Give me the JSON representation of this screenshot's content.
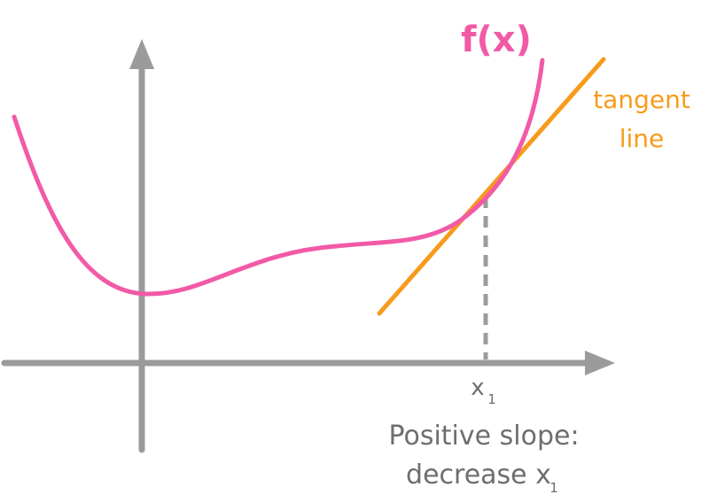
{
  "colors": {
    "curve": "#f25aa6",
    "tangent": "#f79b1c",
    "axis": "#9b9b9b",
    "text": "#6e6e6e"
  },
  "labels": {
    "function": "f(x)",
    "tangent_line1": "tangent",
    "tangent_line2": "line",
    "point_base": "x",
    "point_sub": "1",
    "caption_line1": "Positive slope:",
    "caption_line2_base": "decrease x",
    "caption_line2_sub": "1"
  }
}
